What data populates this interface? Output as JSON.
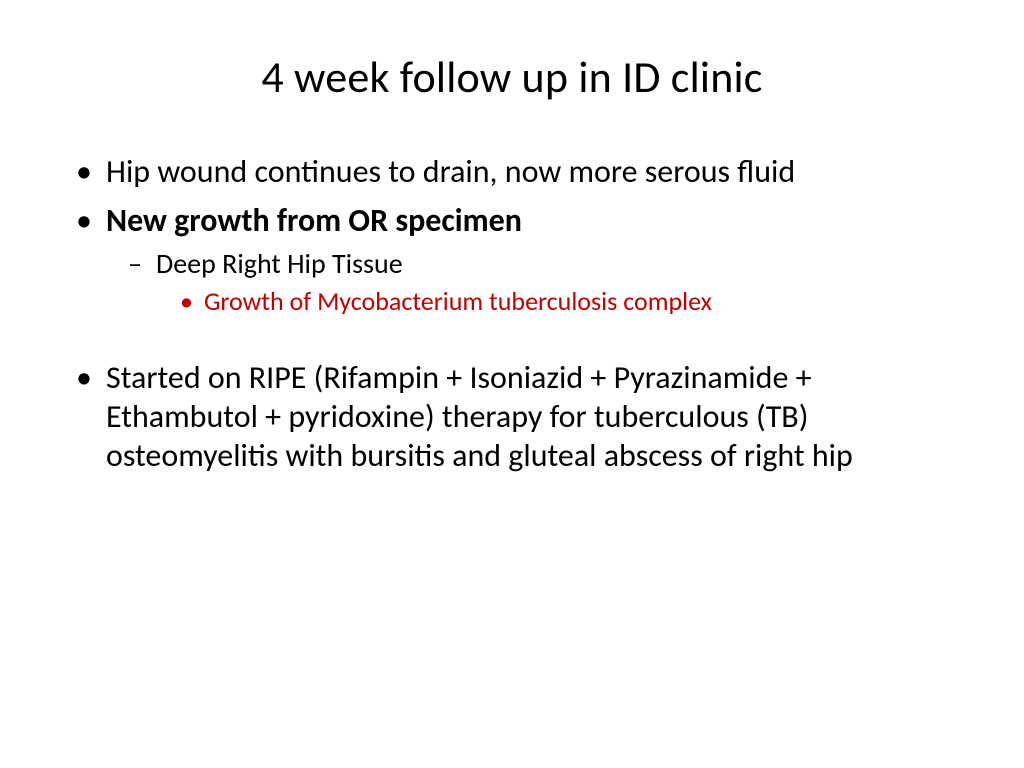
{
  "colors": {
    "background": "#ffffff",
    "text": "#000000",
    "highlight": "#c00000"
  },
  "typography": {
    "family": "Calibri",
    "title_fontsize_pt": 40,
    "l1_fontsize_pt": 32,
    "l2_fontsize_pt": 28,
    "l3_fontsize_pt": 24
  },
  "slide": {
    "title": "4 week follow up in ID clinic",
    "bullets": {
      "b1": "Hip wound continues to drain, now more serous fluid",
      "b2": "New growth from OR specimen",
      "b2_sub": "Deep Right Hip Tissue",
      "b2_sub_sub": "Growth of Mycobacterium tuberculosis complex",
      "b3": "Started on RIPE (Rifampin + Isoniazid + Pyrazinamide + Ethambutol + pyridoxine) therapy for tuberculous (TB) osteomyelitis with bursitis and gluteal abscess of right hip"
    }
  }
}
